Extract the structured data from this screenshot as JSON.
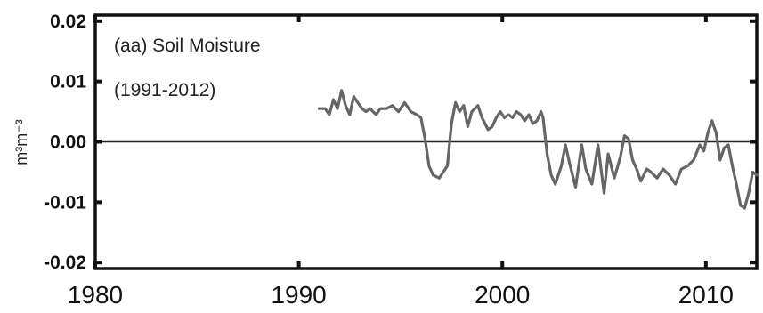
{
  "chart_data": {
    "type": "line",
    "title": "",
    "annotation_lines": [
      "(aa) Soil Moisture",
      "(1991-2012)"
    ],
    "ylabel": "m³m⁻³",
    "xlabel": "",
    "xlim": [
      1980,
      2012.5
    ],
    "ylim": [
      -0.021,
      0.021
    ],
    "xticks": [
      1980,
      1990,
      2000,
      2010
    ],
    "xtick_labels": [
      "1980",
      "1990",
      "2000",
      "2010"
    ],
    "yticks": [
      0.02,
      0.01,
      0.0,
      -0.01,
      -0.02
    ],
    "ytick_labels": [
      "0.02",
      "0.01",
      "0.00",
      "-0.01",
      "-0.02"
    ],
    "zero_line": true,
    "grid": false,
    "series": [
      {
        "color": "#666666",
        "x": [
          1991.0,
          1991.3,
          1991.5,
          1991.7,
          1991.9,
          1992.1,
          1992.3,
          1992.5,
          1992.7,
          1992.9,
          1993.1,
          1993.3,
          1993.5,
          1993.8,
          1994.0,
          1994.3,
          1994.6,
          1994.9,
          1995.2,
          1995.5,
          1995.8,
          1996.0,
          1996.2,
          1996.4,
          1996.6,
          1996.9,
          1997.1,
          1997.3,
          1997.5,
          1997.7,
          1997.9,
          1998.1,
          1998.3,
          1998.5,
          1998.8,
          1999.0,
          1999.3,
          1999.5,
          1999.7,
          1999.9,
          2000.1,
          2000.3,
          2000.5,
          2000.7,
          2000.9,
          2001.1,
          2001.3,
          2001.5,
          2001.7,
          2001.9,
          2002.0,
          2002.2,
          2002.4,
          2002.6,
          2002.9,
          2003.1,
          2003.3,
          2003.6,
          2003.9,
          2004.1,
          2004.4,
          2004.7,
          2005.0,
          2005.2,
          2005.5,
          2005.8,
          2006.0,
          2006.2,
          2006.4,
          2006.6,
          2006.8,
          2007.1,
          2007.3,
          2007.6,
          2007.9,
          2008.2,
          2008.5,
          2008.8,
          2009.1,
          2009.4,
          2009.7,
          2009.9,
          2010.1,
          2010.3,
          2010.5,
          2010.7,
          2010.9,
          2011.1,
          2011.3,
          2011.5,
          2011.7,
          2011.9,
          2012.1,
          2012.3,
          2012.5
        ],
        "y": [
          0.0055,
          0.0055,
          0.0045,
          0.007,
          0.0055,
          0.0085,
          0.006,
          0.0045,
          0.0075,
          0.0065,
          0.0055,
          0.005,
          0.0055,
          0.0045,
          0.0055,
          0.0055,
          0.006,
          0.005,
          0.0065,
          0.005,
          0.0045,
          0.004,
          0.0005,
          -0.004,
          -0.0055,
          -0.006,
          -0.005,
          -0.004,
          0.003,
          0.0065,
          0.005,
          0.006,
          0.0025,
          0.005,
          0.006,
          0.004,
          0.002,
          0.0025,
          0.004,
          0.005,
          0.004,
          0.0045,
          0.004,
          0.005,
          0.0045,
          0.0035,
          0.0045,
          0.003,
          0.0035,
          0.005,
          0.004,
          -0.002,
          -0.0055,
          -0.007,
          -0.004,
          -0.0005,
          -0.0035,
          -0.0075,
          -0.0005,
          -0.0045,
          -0.007,
          -0.0005,
          -0.0085,
          -0.002,
          -0.006,
          -0.0025,
          0.001,
          0.0005,
          -0.003,
          -0.0045,
          -0.0065,
          -0.0045,
          -0.005,
          -0.006,
          -0.0045,
          -0.0055,
          -0.007,
          -0.0045,
          -0.004,
          -0.003,
          -0.0005,
          -0.0015,
          0.0015,
          0.0035,
          0.0015,
          -0.003,
          -0.001,
          -0.0005,
          -0.004,
          -0.007,
          -0.0105,
          -0.011,
          -0.0085,
          -0.005,
          -0.0055
        ]
      }
    ]
  }
}
